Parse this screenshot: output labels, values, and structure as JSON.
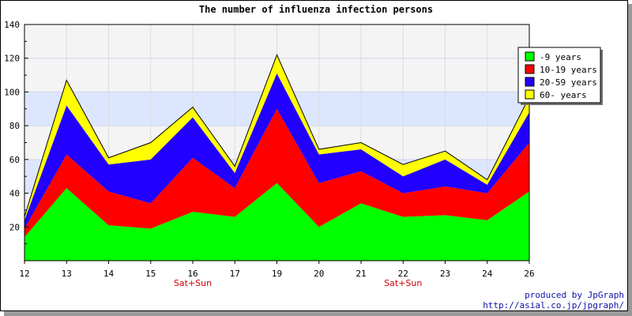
{
  "chart_data": {
    "type": "area",
    "stacked": true,
    "title": "The number of influenza infection persons",
    "x": [
      12,
      13,
      14,
      15,
      16,
      17,
      19,
      20,
      21,
      22,
      23,
      24,
      26
    ],
    "sub_labels": {
      "16": "Sat+Sun",
      "22": "Sat+Sun"
    },
    "ylim": [
      0,
      140
    ],
    "yticks": [
      20,
      40,
      60,
      80,
      100,
      120,
      140
    ],
    "grid": true,
    "legend_position": "top-right",
    "series": [
      {
        "name": "-9 years",
        "color": "#00ff00",
        "values": [
          14,
          43,
          21,
          19,
          29,
          26,
          46,
          20,
          34,
          26,
          27,
          24,
          41
        ]
      },
      {
        "name": "10-19 years",
        "color": "#ff0000",
        "values": [
          5,
          20,
          20,
          15,
          32,
          17,
          44,
          26,
          19,
          14,
          17,
          16,
          29
        ]
      },
      {
        "name": "20-59 years",
        "color": "#2200ff",
        "values": [
          5,
          29,
          16,
          26,
          24,
          9,
          21,
          17,
          13,
          10,
          16,
          5,
          18
        ]
      },
      {
        "name": "60- years",
        "color": "#ffff00",
        "values": [
          2,
          15,
          4,
          10,
          6,
          4,
          11,
          3,
          4,
          7,
          5,
          3,
          9
        ]
      }
    ]
  },
  "credit": {
    "line1": "produced by JpGraph",
    "line2": "http://asial.co.jp/jpgraph/"
  }
}
